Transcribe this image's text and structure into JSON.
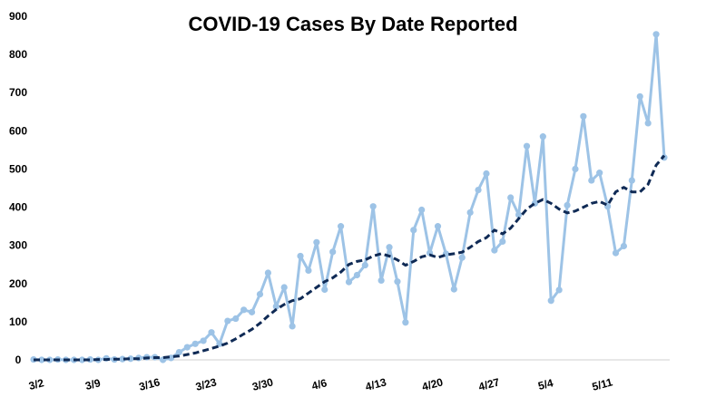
{
  "chart_data": {
    "type": "line",
    "title": "COVID-19 Cases By Date Reported",
    "xlabel": "",
    "ylabel": "",
    "ylim": [
      0,
      900
    ],
    "yticks": [
      "0",
      "100",
      "200",
      "300",
      "400",
      "500",
      "600",
      "700",
      "800",
      "900"
    ],
    "xtick_labels": [
      "3/2",
      "3/9",
      "3/16",
      "3/23",
      "3/30",
      "4/6",
      "4/13",
      "4/20",
      "4/27",
      "5/4",
      "5/11"
    ],
    "grid": false,
    "legend": "none",
    "x": [
      "3/2",
      "3/3",
      "3/4",
      "3/5",
      "3/6",
      "3/7",
      "3/8",
      "3/9",
      "3/10",
      "3/11",
      "3/12",
      "3/13",
      "3/14",
      "3/15",
      "3/16",
      "3/17",
      "3/18",
      "3/19",
      "3/20",
      "3/21",
      "3/22",
      "3/23",
      "3/24",
      "3/25",
      "3/26",
      "3/27",
      "3/28",
      "3/29",
      "3/30",
      "3/31",
      "4/1",
      "4/2",
      "4/3",
      "4/4",
      "4/5",
      "4/6",
      "4/7",
      "4/8",
      "4/9",
      "4/10",
      "4/11",
      "4/12",
      "4/13",
      "4/14",
      "4/15",
      "4/16",
      "4/17",
      "4/18",
      "4/19",
      "4/20",
      "4/21",
      "4/22",
      "4/23",
      "4/24",
      "4/25",
      "4/26",
      "4/27",
      "4/28",
      "4/29",
      "4/30",
      "5/1",
      "5/2",
      "5/3",
      "5/4",
      "5/5",
      "5/6",
      "5/7",
      "5/8",
      "5/9",
      "5/10",
      "5/11",
      "5/12",
      "5/13",
      "5/14",
      "5/15",
      "5/16",
      "5/17",
      "5/18",
      "5/19"
    ],
    "series": [
      {
        "style": "solid-markers",
        "color": "#9DC3E6",
        "values": [
          1,
          0,
          0,
          1,
          0,
          0,
          0,
          1,
          0,
          4,
          1,
          2,
          3,
          5,
          7,
          7,
          0,
          5,
          20,
          33,
          42,
          50,
          72,
          42,
          102,
          108,
          131,
          125,
          172,
          228,
          140,
          190,
          88,
          272,
          234,
          308,
          184,
          283,
          350,
          204,
          222,
          248,
          402,
          208,
          295,
          205,
          98,
          340,
          393,
          280,
          350,
          278,
          185,
          268,
          386,
          445,
          488,
          287,
          310,
          425,
          380,
          560,
          410,
          585,
          155,
          183,
          405,
          500,
          638,
          470,
          490,
          402,
          280,
          298,
          470,
          690,
          620,
          853,
          530
        ]
      },
      {
        "style": "dashed",
        "color": "#0F2A55",
        "values": [
          0,
          0,
          0,
          0,
          0,
          0,
          0,
          0,
          1,
          1,
          2,
          2,
          3,
          3,
          5,
          6,
          6,
          8,
          10,
          14,
          18,
          24,
          30,
          36,
          44,
          55,
          68,
          80,
          96,
          115,
          132,
          145,
          155,
          160,
          175,
          190,
          205,
          215,
          230,
          250,
          258,
          262,
          272,
          278,
          272,
          262,
          248,
          258,
          270,
          275,
          268,
          275,
          278,
          282,
          295,
          310,
          320,
          340,
          330,
          345,
          370,
          395,
          410,
          420,
          410,
          395,
          385,
          390,
          400,
          410,
          415,
          405,
          440,
          452,
          440,
          440,
          460,
          510,
          535
        ]
      }
    ]
  }
}
